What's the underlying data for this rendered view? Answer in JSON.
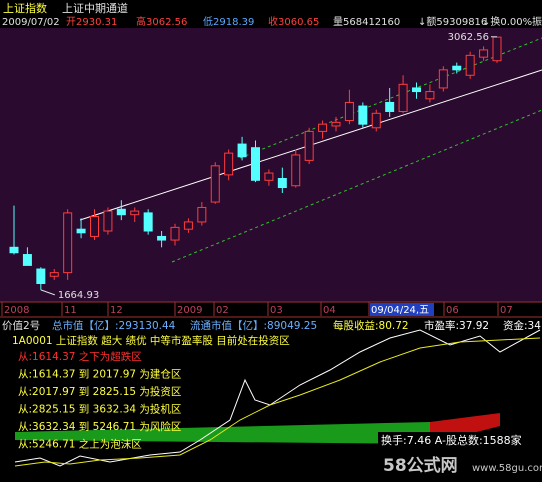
{
  "title": "上证指数",
  "indicator": "上证中期通道",
  "quote": {
    "date": "2009/07/02",
    "open": "开2930.31",
    "high": "高3062.56",
    "low": "低2918.39",
    "close": "收3060.65",
    "volume": "量568412160",
    "amount": "↓额59309816",
    "turnover": "↓换0.00%",
    "amplitude": "振"
  },
  "chart_data": {
    "type": "candlestick",
    "open": [
      1900,
      1860,
      1780,
      1740,
      1760,
      2000,
      1960,
      1990,
      2110,
      2080,
      2090,
      1960,
      1940,
      2000,
      2040,
      2150,
      2300,
      2470,
      2450,
      2270,
      2280,
      2240,
      2380,
      2540,
      2570,
      2600,
      2680,
      2560,
      2700,
      2650,
      2780,
      2720,
      2780,
      2900,
      2850,
      2950,
      2930.31
    ],
    "high": [
      2130,
      1900,
      1790,
      1780,
      2110,
      2060,
      2110,
      2120,
      2160,
      2120,
      2110,
      1990,
      2030,
      2060,
      2150,
      2370,
      2440,
      2510,
      2490,
      2330,
      2340,
      2440,
      2560,
      2600,
      2620,
      2770,
      2700,
      2660,
      2780,
      2850,
      2810,
      2800,
      2900,
      2920,
      2980,
      3010,
      3062.56
    ],
    "low": [
      1860,
      1800,
      1664.93,
      1720,
      1720,
      1950,
      1940,
      1970,
      2050,
      2040,
      1970,
      1900,
      1910,
      1980,
      2020,
      2140,
      2270,
      2380,
      2260,
      2240,
      2200,
      2230,
      2360,
      2500,
      2540,
      2580,
      2560,
      2540,
      2620,
      2640,
      2720,
      2700,
      2760,
      2860,
      2830,
      2930,
      2918.39
    ],
    "close": [
      1870,
      1800,
      1700,
      1760,
      2090,
      1980,
      2070,
      2100,
      2080,
      2100,
      1990,
      1940,
      2010,
      2040,
      2120,
      2350,
      2420,
      2400,
      2270,
      2310,
      2230,
      2410,
      2540,
      2580,
      2590,
      2700,
      2580,
      2640,
      2650,
      2800,
      2760,
      2760,
      2880,
      2880,
      2960,
      2990,
      3060.65
    ],
    "ylim": [
      1620,
      3100
    ],
    "max_label": 3062.56,
    "min_label": 1664.93,
    "up_color": "#ff3c3c",
    "down_color": "#54ffff"
  },
  "x_axis": [
    "2008",
    "11",
    "12",
    "2009",
    "02",
    "03",
    "04",
    "09/04/24,五",
    "06",
    "07"
  ],
  "panel": {
    "header": [
      "价值2号",
      "总市值【亿】:293130.44",
      "流通市值【亿】:89049.25",
      "每股收益:80.72",
      "市盈率:37.92",
      "资金:34"
    ],
    "summary": "1A0001 上证指数 超大 绩优 中等市盈率股 目前处在投资区",
    "zones": [
      "从:1614.37 之下为超跌区",
      "从:1614.37 到 2017.97 为建仓区",
      "从:2017.97 到 2825.15 为投资区",
      "从:2825.15 到 3632.34 为投机区",
      "从:3632.34 到 5246.71 为风险区",
      "从:5246.71 之上为泡沫区"
    ],
    "turnover": "换手:7.46 A-股总数:1588家"
  },
  "watermark": {
    "brand": "58公式网",
    "url": "www.58gu.com"
  }
}
